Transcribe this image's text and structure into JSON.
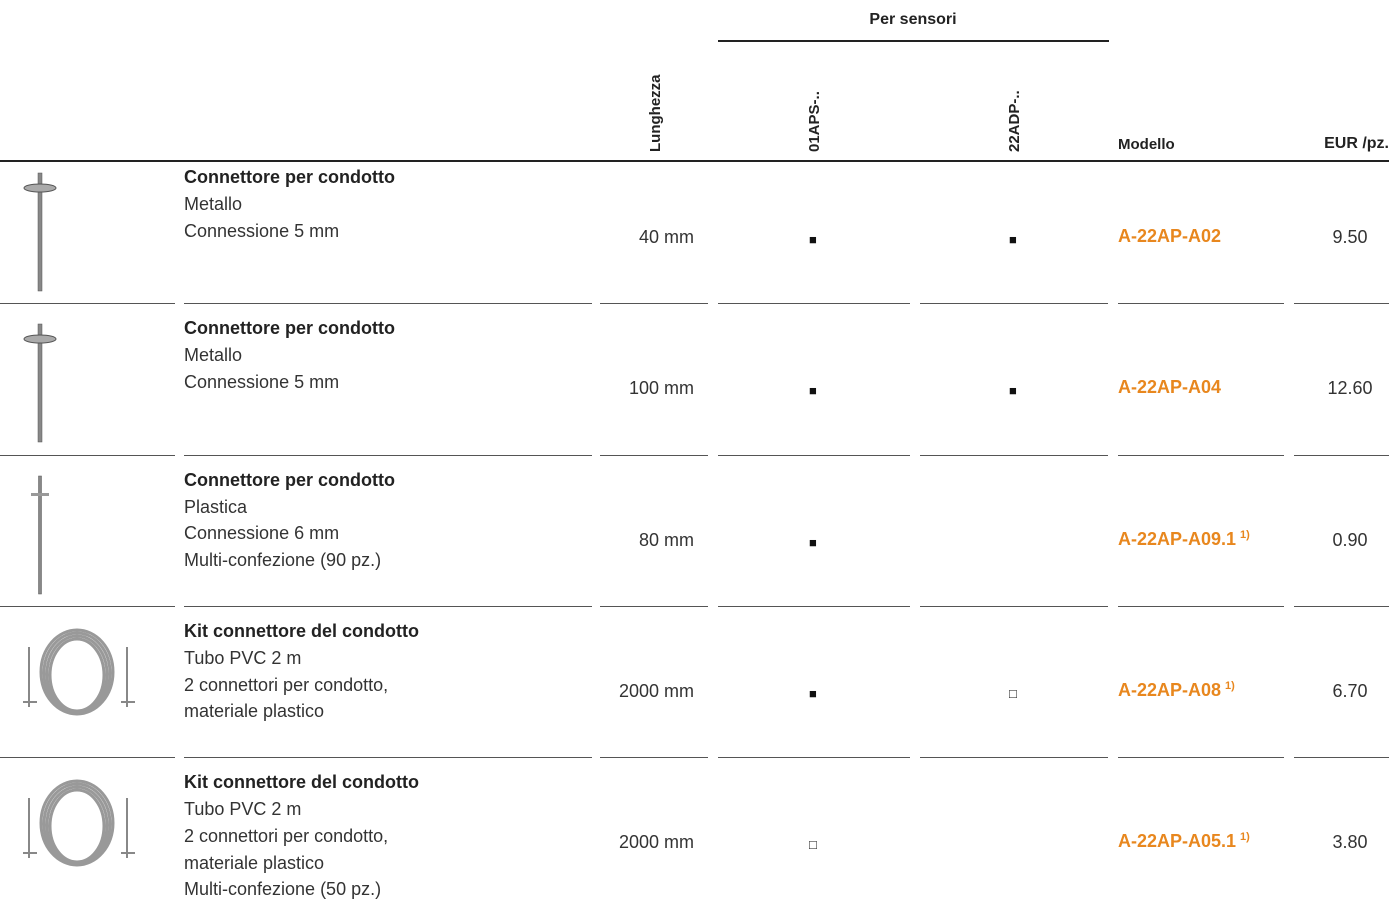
{
  "header": {
    "group": "Per sensori",
    "length": "Lunghezza",
    "sensors": [
      "01APS-..",
      "22ADP-.."
    ],
    "model": "Modello",
    "price": "EUR /pz."
  },
  "rows": [
    {
      "title": "Connettore per condotto",
      "lines": [
        "Metallo",
        "Connessione 5 mm"
      ],
      "length": "40 mm",
      "sensors": [
        "■",
        "■"
      ],
      "model": "A-22AP-A02",
      "note": null,
      "price": "9.50"
    },
    {
      "title": "Connettore per condotto",
      "lines": [
        "Metallo",
        "Connessione 5 mm"
      ],
      "length": "100 mm",
      "sensors": [
        "■",
        "■"
      ],
      "model": "A-22AP-A04",
      "note": null,
      "price": "12.60"
    },
    {
      "title": "Connettore per condotto",
      "lines": [
        "Plastica",
        "Connessione 6 mm",
        "Multi-confezione (90 pz.)"
      ],
      "length": "80 mm",
      "sensors": [
        "■",
        null
      ],
      "model": "A-22AP-A09.1",
      "note": "1)",
      "price": "0.90"
    },
    {
      "title": "Kit connettore del condotto",
      "lines": [
        "Tubo PVC 2 m",
        "2 connettori per condotto,",
        "materiale plastico"
      ],
      "length": "2000 mm",
      "sensors": [
        "■",
        "□"
      ],
      "model": "A-22AP-A08",
      "note": "1)",
      "price": "6.70"
    },
    {
      "title": "Kit connettore del condotto",
      "lines": [
        "Tubo PVC 2 m",
        "2 connettori per condotto,",
        "materiale plastico",
        "Multi-confezione (50 pz.)"
      ],
      "length": "2000 mm",
      "sensors": [
        "□",
        null
      ],
      "model": "A-22AP-A05.1",
      "note": "1)",
      "price": "3.80"
    }
  ]
}
